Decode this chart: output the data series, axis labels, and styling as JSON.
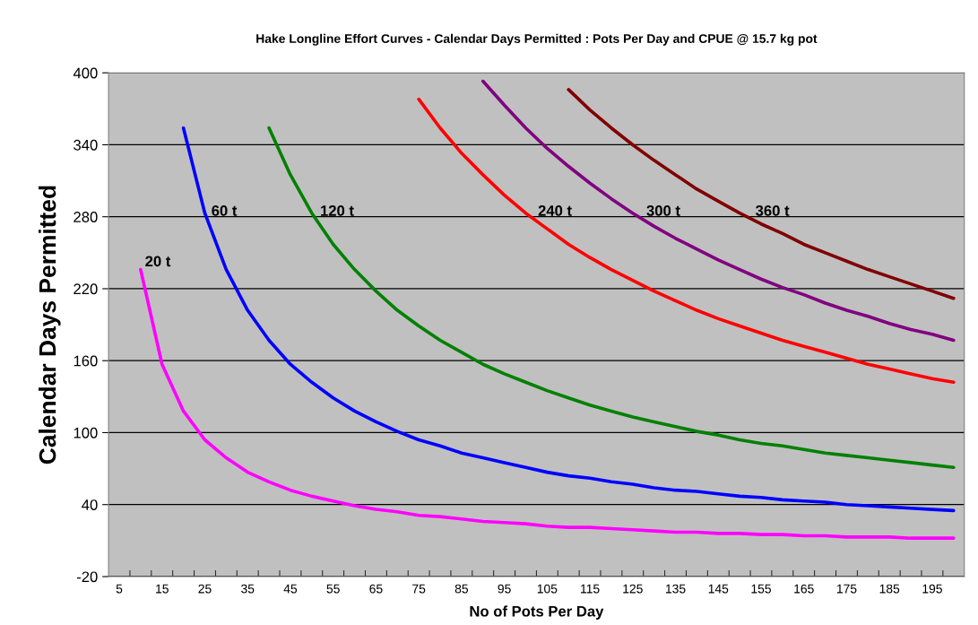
{
  "chart_data": {
    "type": "line",
    "title": "Hake Longline Effort Curves - Calendar Days Permitted : Pots Per Day and CPUE @ 15.7 kg pot",
    "xlabel": "No of Pots Per Day",
    "ylabel": "Calendar Days Permitted",
    "categories": [
      "5",
      null,
      "15",
      null,
      "25",
      null,
      "35",
      null,
      "45",
      null,
      "55",
      null,
      "65",
      null,
      "75",
      null,
      "85",
      null,
      "95",
      null,
      "105",
      null,
      "115",
      null,
      "125",
      null,
      "135",
      null,
      "145",
      null,
      "155",
      null,
      "165",
      null,
      "175",
      null,
      "185",
      null,
      "195",
      null
    ],
    "series": [
      {
        "name": "20 t",
        "color": "#ff00ff",
        "values": [
          null,
          236,
          157,
          118,
          94,
          79,
          67,
          59,
          52,
          47,
          43,
          39,
          36,
          34,
          31,
          30,
          28,
          26,
          25,
          24,
          22,
          21,
          21,
          20,
          19,
          18,
          17,
          17,
          16,
          16,
          15,
          15,
          14,
          14,
          13,
          13,
          13,
          12,
          12,
          12
        ]
      },
      {
        "name": "60 t",
        "color": "#0000ff",
        "values": [
          null,
          null,
          null,
          354,
          283,
          236,
          202,
          177,
          157,
          142,
          129,
          118,
          109,
          101,
          94,
          89,
          83,
          79,
          75,
          71,
          67,
          64,
          62,
          59,
          57,
          54,
          52,
          51,
          49,
          47,
          46,
          44,
          43,
          42,
          40,
          39,
          38,
          37,
          36,
          35
        ]
      },
      {
        "name": "120 t",
        "color": "#008000",
        "values": [
          null,
          null,
          null,
          null,
          null,
          null,
          null,
          354,
          315,
          283,
          257,
          236,
          218,
          202,
          189,
          177,
          167,
          157,
          149,
          142,
          135,
          129,
          123,
          118,
          113,
          109,
          105,
          101,
          98,
          94,
          91,
          89,
          86,
          83,
          81,
          79,
          77,
          75,
          73,
          71
        ]
      },
      {
        "name": "240 t",
        "color": "#ff0000",
        "values": [
          null,
          null,
          null,
          null,
          null,
          null,
          null,
          null,
          null,
          null,
          null,
          null,
          null,
          null,
          378,
          354,
          333,
          315,
          298,
          283,
          270,
          257,
          246,
          236,
          227,
          218,
          210,
          202,
          195,
          189,
          183,
          177,
          172,
          167,
          162,
          157,
          153,
          149,
          145,
          142
        ]
      },
      {
        "name": "300 t",
        "color": "#800080",
        "values": [
          null,
          null,
          null,
          null,
          null,
          null,
          null,
          null,
          null,
          null,
          null,
          null,
          null,
          null,
          null,
          null,
          null,
          393,
          373,
          354,
          337,
          322,
          308,
          295,
          283,
          272,
          262,
          253,
          244,
          236,
          228,
          221,
          215,
          208,
          202,
          197,
          191,
          186,
          182,
          177
        ]
      },
      {
        "name": "360 t",
        "color": "#800000",
        "values": [
          null,
          null,
          null,
          null,
          null,
          null,
          null,
          null,
          null,
          null,
          null,
          null,
          null,
          null,
          null,
          null,
          null,
          null,
          null,
          null,
          null,
          386,
          369,
          354,
          340,
          327,
          315,
          303,
          293,
          283,
          274,
          266,
          257,
          250,
          243,
          236,
          230,
          224,
          218,
          212
        ]
      }
    ],
    "ylim": [
      -20,
      400
    ],
    "yticks": [
      -20,
      40,
      100,
      160,
      220,
      280,
      340,
      400
    ],
    "grid": "y",
    "legend": false,
    "marker": "none",
    "line_style": "solid"
  }
}
